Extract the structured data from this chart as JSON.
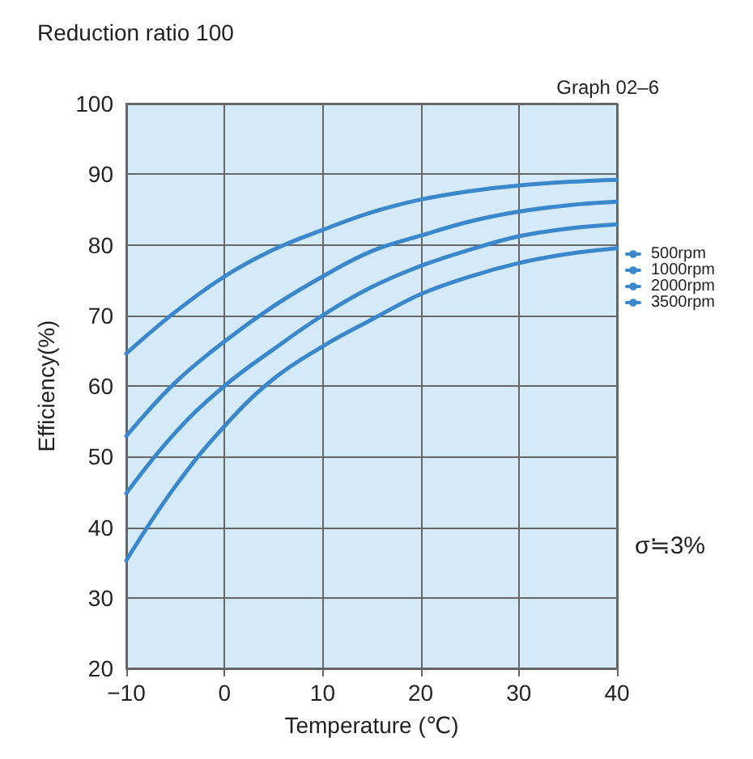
{
  "chart_data": {
    "type": "line",
    "title": "Reduction ratio 100",
    "xlabel": "Temperature (℃)",
    "ylabel": "Efficiency(%)",
    "annotations": [
      "Graph 02–6",
      "σ≒3%"
    ],
    "x": [
      -10,
      -5,
      0,
      5,
      10,
      15,
      20,
      25,
      30,
      35,
      40
    ],
    "series": [
      {
        "name": "500rpm",
        "color": "#3a87cc",
        "values": [
          64.6,
          70.5,
          75.5,
          79.3,
          82.1,
          84.6,
          86.4,
          87.6,
          88.4,
          88.9,
          89.2
        ]
      },
      {
        "name": "1000rpm",
        "color": "#3a87cc",
        "values": [
          52.9,
          60.5,
          66.3,
          71.3,
          75.5,
          79.1,
          81.3,
          83.3,
          84.7,
          85.6,
          86.1
        ]
      },
      {
        "name": "2000rpm",
        "color": "#3a87cc",
        "values": [
          44.8,
          53.4,
          60,
          65.2,
          70,
          74,
          77,
          79.3,
          81.2,
          82.3,
          82.9
        ]
      },
      {
        "name": "3500rpm",
        "color": "#3a87cc",
        "values": [
          35.3,
          45.8,
          54.3,
          61,
          65.6,
          69.4,
          73,
          75.5,
          77.4,
          78.7,
          79.5
        ]
      }
    ],
    "xlim": [
      -10,
      40
    ],
    "xticks": [
      -10,
      0,
      10,
      20,
      30,
      40
    ],
    "ylim": [
      20,
      100
    ],
    "yticks": [
      20,
      30,
      40,
      50,
      60,
      70,
      80,
      90,
      100
    ],
    "grid": true,
    "legend": "right",
    "marker": "none",
    "line_style": "solid"
  }
}
